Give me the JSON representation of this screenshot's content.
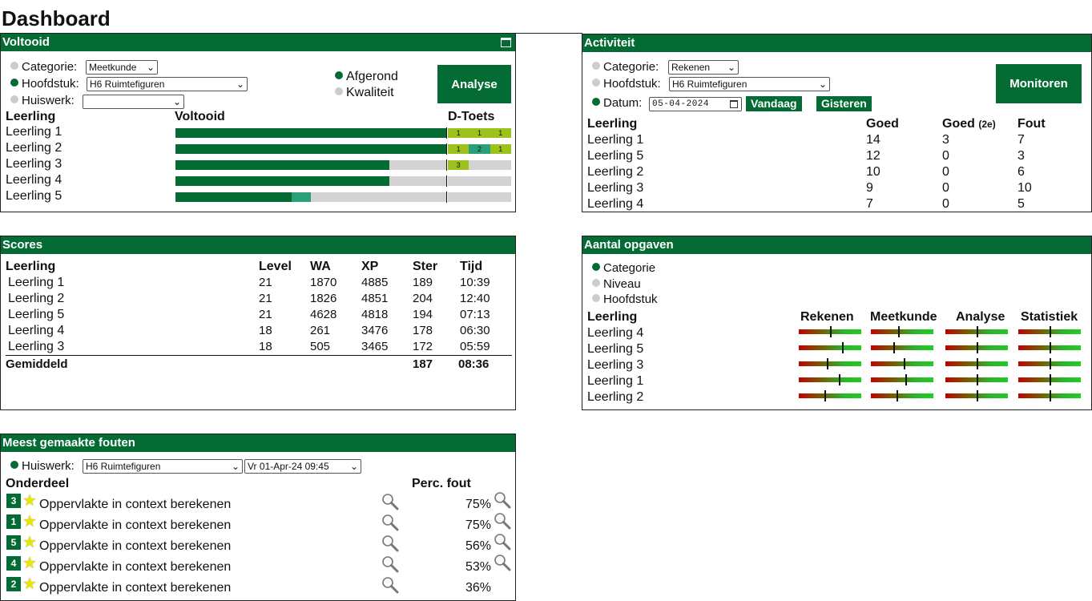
{
  "page": {
    "title": "Dashboard"
  },
  "voltooid": {
    "title": "Voltooid",
    "filters": {
      "categorie_label": "Categorie:",
      "categorie_value": "Meetkunde",
      "hoofdstuk_label": "Hoofdstuk:",
      "hoofdstuk_value": "H6 Ruimtefiguren",
      "huiswerk_label": "Huiswerk:",
      "huiswerk_value": ""
    },
    "modes": {
      "afgerond": "Afgerond",
      "kwaliteit": "Kwaliteit"
    },
    "analyse_button": "Analyse",
    "headers": {
      "leerling": "Leerling",
      "voltooid": "Voltooid",
      "dtoets": "D-Toets"
    },
    "rows": [
      {
        "name": "Leerling 1",
        "completion": 1.0,
        "partial": 0,
        "dtoets": [
          "1",
          "1",
          "1"
        ]
      },
      {
        "name": "Leerling 2",
        "completion": 1.0,
        "partial": 0,
        "dtoets": [
          "1",
          "2",
          "1"
        ]
      },
      {
        "name": "Leerling 3",
        "completion": 0.79,
        "partial": 0,
        "dtoets": [
          "3"
        ]
      },
      {
        "name": "Leerling 4",
        "completion": 0.79,
        "partial": 0,
        "dtoets": []
      },
      {
        "name": "Leerling 5",
        "completion": 0.43,
        "partial": 0.07,
        "dtoets": []
      }
    ]
  },
  "activiteit": {
    "title": "Activiteit",
    "filters": {
      "categorie_label": "Categorie:",
      "categorie_value": "Rekenen",
      "hoofdstuk_label": "Hoofdstuk:",
      "hoofdstuk_value": "H6 Ruimtefiguren",
      "datum_label": "Datum:",
      "datum_value": "05-04-2024"
    },
    "monitor_button": "Monitoren",
    "vandaag_button": "Vandaag",
    "gisteren_button": "Gisteren",
    "headers": {
      "leerling": "Leerling",
      "goed": "Goed",
      "goed2": "Goed",
      "goed2_sub": "(2e)",
      "fout": "Fout"
    },
    "rows": [
      {
        "name": "Leerling 1",
        "goed": "14",
        "goed2": "3",
        "fout": "7"
      },
      {
        "name": "Leerling 5",
        "goed": "12",
        "goed2": "0",
        "fout": "3"
      },
      {
        "name": "Leerling 2",
        "goed": "10",
        "goed2": "0",
        "fout": "6"
      },
      {
        "name": "Leerling 3",
        "goed": "9",
        "goed2": "0",
        "fout": "10"
      },
      {
        "name": "Leerling 4",
        "goed": "7",
        "goed2": "0",
        "fout": "5"
      }
    ]
  },
  "scores": {
    "title": "Scores",
    "headers": {
      "leerling": "Leerling",
      "level": "Level",
      "wa": "WA",
      "xp": "XP",
      "ster": "Ster",
      "tijd": "Tijd"
    },
    "rows": [
      {
        "name": "Leerling 1",
        "level": "21",
        "wa": "1870",
        "xp": "4885",
        "ster": "189",
        "tijd": "10:39"
      },
      {
        "name": "Leerling 2",
        "level": "21",
        "wa": "1826",
        "xp": "4851",
        "ster": "204",
        "tijd": "12:40"
      },
      {
        "name": "Leerling 5",
        "level": "21",
        "wa": "4628",
        "xp": "4818",
        "ster": "194",
        "tijd": "07:13"
      },
      {
        "name": "Leerling 4",
        "level": "18",
        "wa": "261",
        "xp": "3476",
        "ster": "178",
        "tijd": "06:30"
      },
      {
        "name": "Leerling 3",
        "level": "18",
        "wa": "505",
        "xp": "3465",
        "ster": "172",
        "tijd": "05:59"
      }
    ],
    "average": {
      "label": "Gemiddeld",
      "ster": "187",
      "tijd": "08:36"
    }
  },
  "aantal": {
    "title": "Aantal opgaven",
    "modes": [
      "Categorie",
      "Niveau",
      "Hoofdstuk"
    ],
    "headers": {
      "leerling": "Leerling",
      "cols": [
        "Rekenen",
        "Meetkunde",
        "Analyse",
        "Statistiek"
      ]
    },
    "rows": [
      {
        "name": "Leerling 4",
        "marks": [
          0.5,
          0.44,
          0.5,
          0.5
        ]
      },
      {
        "name": "Leerling 5",
        "marks": [
          0.69,
          0.36,
          0.5,
          0.5
        ]
      },
      {
        "name": "Leerling 3",
        "marks": [
          0.45,
          0.52,
          0.5,
          0.5
        ]
      },
      {
        "name": "Leerling 1",
        "marks": [
          0.64,
          0.55,
          0.5,
          0.5
        ]
      },
      {
        "name": "Leerling 2",
        "marks": [
          0.41,
          0.41,
          0.5,
          0.5
        ]
      }
    ]
  },
  "fouten": {
    "title": "Meest gemaakte fouten",
    "filters": {
      "huiswerk_label": "Huiswerk:",
      "huiswerk_value": "H6 Ruimtefiguren",
      "date_value": "Vr 01-Apr-24 09:45"
    },
    "headers": {
      "onderdeel": "Onderdeel",
      "perc": "Perc. fout"
    },
    "rows": [
      {
        "num": "3",
        "label": "Oppervlakte in context berekenen",
        "perc": "75%",
        "mag2": true
      },
      {
        "num": "1",
        "label": "Oppervlakte in context berekenen",
        "perc": "75%",
        "mag2": true
      },
      {
        "num": "5",
        "label": "Oppervlakte in context berekenen",
        "perc": "56%",
        "mag2": true
      },
      {
        "num": "4",
        "label": "Oppervlakte in context berekenen",
        "perc": "53%",
        "mag2": true
      },
      {
        "num": "2",
        "label": "Oppervlakte in context berekenen",
        "perc": "36%",
        "mag2": false
      }
    ]
  },
  "colors": {
    "green": "#046b34",
    "teal": "#2aa07a",
    "lime": "#9dc21c",
    "grey": "#d3d3d3"
  }
}
